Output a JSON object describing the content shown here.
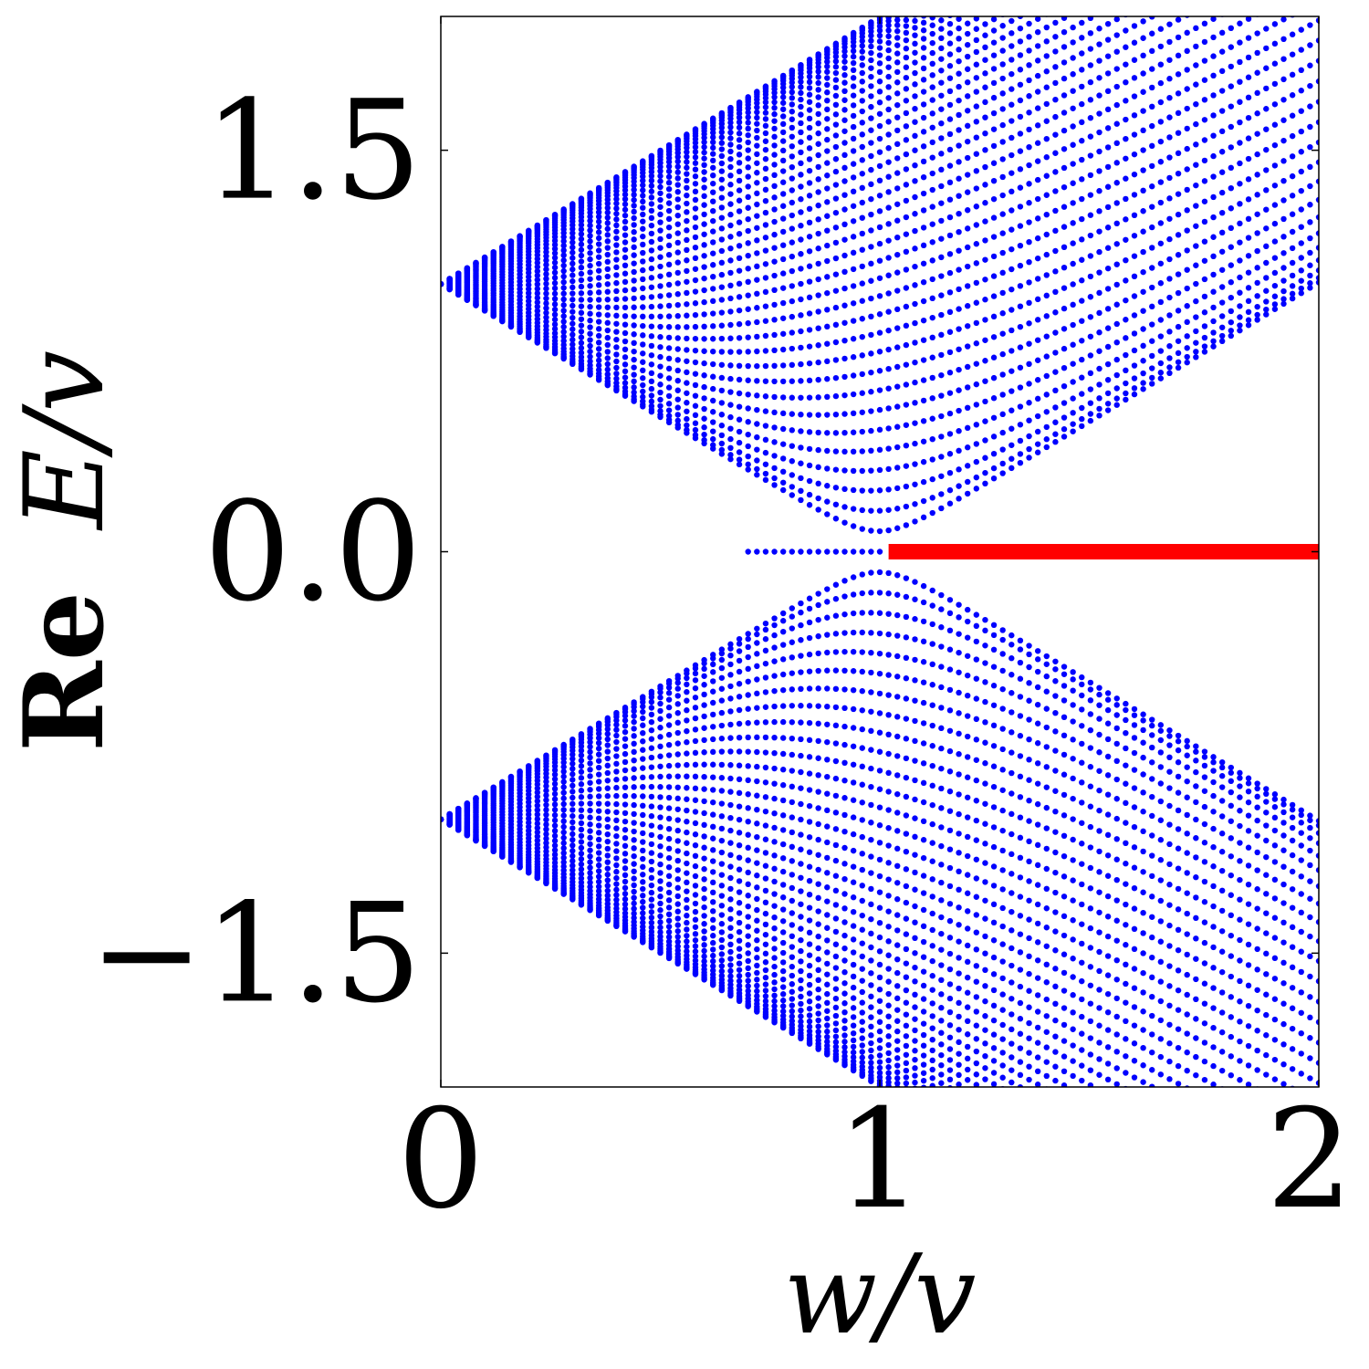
{
  "chart_data": {
    "type": "scatter",
    "xlabel": {
      "prefix": "",
      "math": "w/v"
    },
    "ylabel": {
      "prefix": "Re",
      "math": "E/v"
    },
    "xlim": [
      0,
      2
    ],
    "ylim": [
      -2.0,
      2.0
    ],
    "xticks": [
      {
        "value": 0,
        "label": "0"
      },
      {
        "value": 1,
        "label": "1"
      },
      {
        "value": 2,
        "label": "2"
      }
    ],
    "yticks": [
      {
        "value": 1.5,
        "label": "1.5"
      },
      {
        "value": 0.0,
        "label": "0.0"
      },
      {
        "value": -1.5,
        "label": "−1.5"
      }
    ],
    "grid": false,
    "model": "Re E = ± Re sqrt(v^2 + w^2 + 2 v w cos k), k = pi*n/41, n = 1..40, sampled at w/v = 0.00, 0.02, ..., 2.00; zero modes at Re E = 0",
    "series": [
      {
        "color": "#0000ff",
        "marker": "dot",
        "bulk_bands": {
          "v": 1,
          "k_count": 40,
          "k_denominator": 41,
          "w_start": 0.0,
          "w_end": 2.0,
          "w_step": 0.02
        },
        "zero_modes": {
          "w_start": 0.7,
          "w_end": 1.0,
          "w_step": 0.02,
          "y": 0.0
        }
      },
      {
        "color": "#ff0000",
        "marker": "line",
        "x": [
          1.02,
          2.0
        ],
        "y": [
          0.0,
          0.0
        ]
      }
    ]
  }
}
